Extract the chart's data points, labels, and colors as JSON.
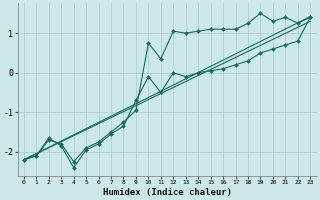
{
  "xlabel": "Humidex (Indice chaleur)",
  "bg_color": "#cce8e8",
  "grid_color": "#aacccc",
  "line_color": "#1a6b5a",
  "xlim": [
    -0.5,
    23.5
  ],
  "ylim": [
    -2.6,
    1.75
  ],
  "yticks": [
    -2,
    -1,
    0,
    1
  ],
  "xticks": [
    0,
    1,
    2,
    3,
    4,
    5,
    6,
    7,
    8,
    9,
    10,
    11,
    12,
    13,
    14,
    15,
    16,
    17,
    18,
    19,
    20,
    21,
    22,
    23
  ],
  "series1_x": [
    0,
    1,
    2,
    3,
    4,
    5,
    6,
    7,
    8,
    9,
    10,
    11,
    12,
    13,
    14,
    15,
    16,
    17,
    18,
    19,
    20,
    21,
    22,
    23
  ],
  "series1_y": [
    -2.2,
    -2.1,
    -1.7,
    -1.8,
    -2.25,
    -1.9,
    -1.75,
    -1.5,
    -1.25,
    -0.95,
    0.75,
    0.35,
    1.05,
    1.0,
    1.05,
    1.1,
    1.1,
    1.1,
    1.25,
    1.5,
    1.3,
    1.4,
    1.25,
    1.4
  ],
  "series2_x": [
    0,
    1,
    2,
    3,
    4,
    5,
    6,
    7,
    8,
    9,
    10,
    11,
    12,
    13,
    14,
    15,
    16,
    17,
    18,
    19,
    20,
    21,
    22,
    23
  ],
  "series2_y": [
    -2.2,
    -2.1,
    -1.65,
    -1.85,
    -2.4,
    -1.95,
    -1.8,
    -1.55,
    -1.35,
    -0.7,
    -0.1,
    -0.5,
    0.0,
    -0.1,
    0.0,
    0.05,
    0.1,
    0.2,
    0.3,
    0.5,
    0.6,
    0.7,
    0.8,
    1.4
  ],
  "line1_x": [
    0,
    23
  ],
  "line1_y": [
    -2.2,
    1.42
  ],
  "line2_x": [
    0,
    23
  ],
  "line2_y": [
    -2.2,
    1.3
  ]
}
